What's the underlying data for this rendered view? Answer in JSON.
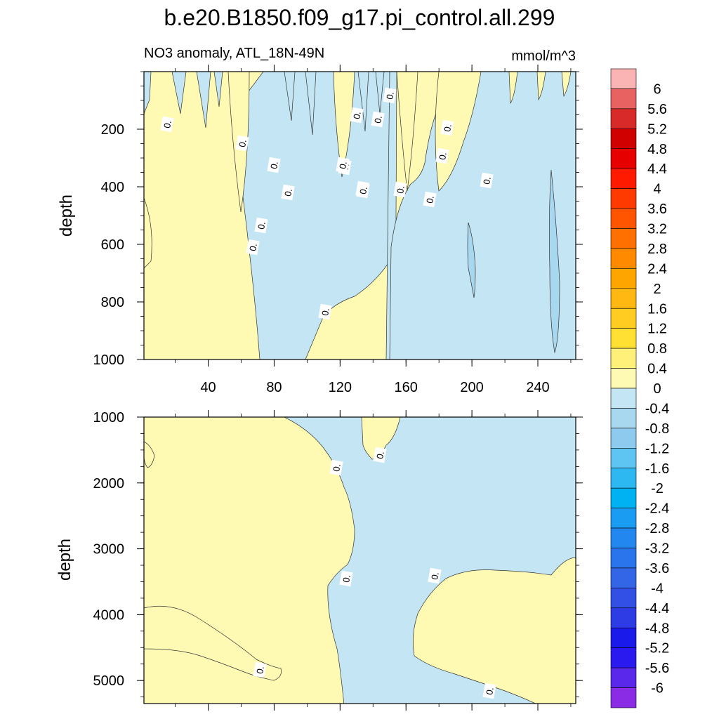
{
  "chart_data": {
    "type": "heatmap",
    "title": "b.e20.B1850.f09_g17.pi_control.all.299",
    "subtitle_left": "NO3 anomaly, ATL_18N-49N",
    "units": "mmol/m^3",
    "x_ticks": [
      "40",
      "80",
      "120",
      "160",
      "200",
      "240"
    ],
    "x_tick_values": [
      40,
      80,
      120,
      160,
      200,
      240
    ],
    "xlim": [
      1,
      263
    ],
    "panels": [
      {
        "id": "upper",
        "ylabel": "depth",
        "ylim": [
          0,
          1000
        ],
        "y_reversed": true,
        "y_ticks": [
          "200",
          "400",
          "600",
          "800",
          "1000"
        ],
        "y_tick_values": [
          200,
          400,
          600,
          800,
          1000
        ]
      },
      {
        "id": "lower",
        "ylabel": "depth",
        "ylim": [
          1000,
          5350
        ],
        "y_reversed": true,
        "y_ticks": [
          "1000",
          "2000",
          "3000",
          "4000",
          "5000"
        ],
        "y_tick_values": [
          1000,
          2000,
          3000,
          4000,
          5000
        ]
      }
    ],
    "contour_label": "0.",
    "colorbar": {
      "labels": [
        "6",
        "5.6",
        "5.2",
        "4.8",
        "4.4",
        "4",
        "3.6",
        "3.2",
        "2.8",
        "2.4",
        "2",
        "1.6",
        "1.2",
        "0.8",
        "0.4",
        "0",
        "-0.4",
        "-0.8",
        "-1.2",
        "-1.6",
        "-2",
        "-2.4",
        "-2.8",
        "-3.2",
        "-3.6",
        "-4",
        "-4.4",
        "-4.8",
        "-5.2",
        "-5.6",
        "-6"
      ],
      "colors": [
        "#FBB4B4",
        "#E86262",
        "#D92A2A",
        "#D00000",
        "#E60000",
        "#FF1A00",
        "#FF3A00",
        "#FF5500",
        "#FF7000",
        "#FF8A00",
        "#FFA500",
        "#FFB811",
        "#FFCC22",
        "#FFE033",
        "#FFF07A",
        "#FEFAB4",
        "#C4E6F4",
        "#A8D8EF",
        "#8ECAEE",
        "#5EC4F2",
        "#2DB8F2",
        "#00B2F2",
        "#1A9CF2",
        "#2288F0",
        "#2A74EC",
        "#3366E6",
        "#3350E6",
        "#2E3CE6",
        "#1A1AEB",
        "#2A1AF0",
        "#5A28EB",
        "#8A2BE6"
      ]
    },
    "fill_colors": {
      "positive": "#FEFAB4",
      "negative": "#C4E6F4",
      "slightly_negative": "#A8D8EF"
    },
    "grid": false
  }
}
